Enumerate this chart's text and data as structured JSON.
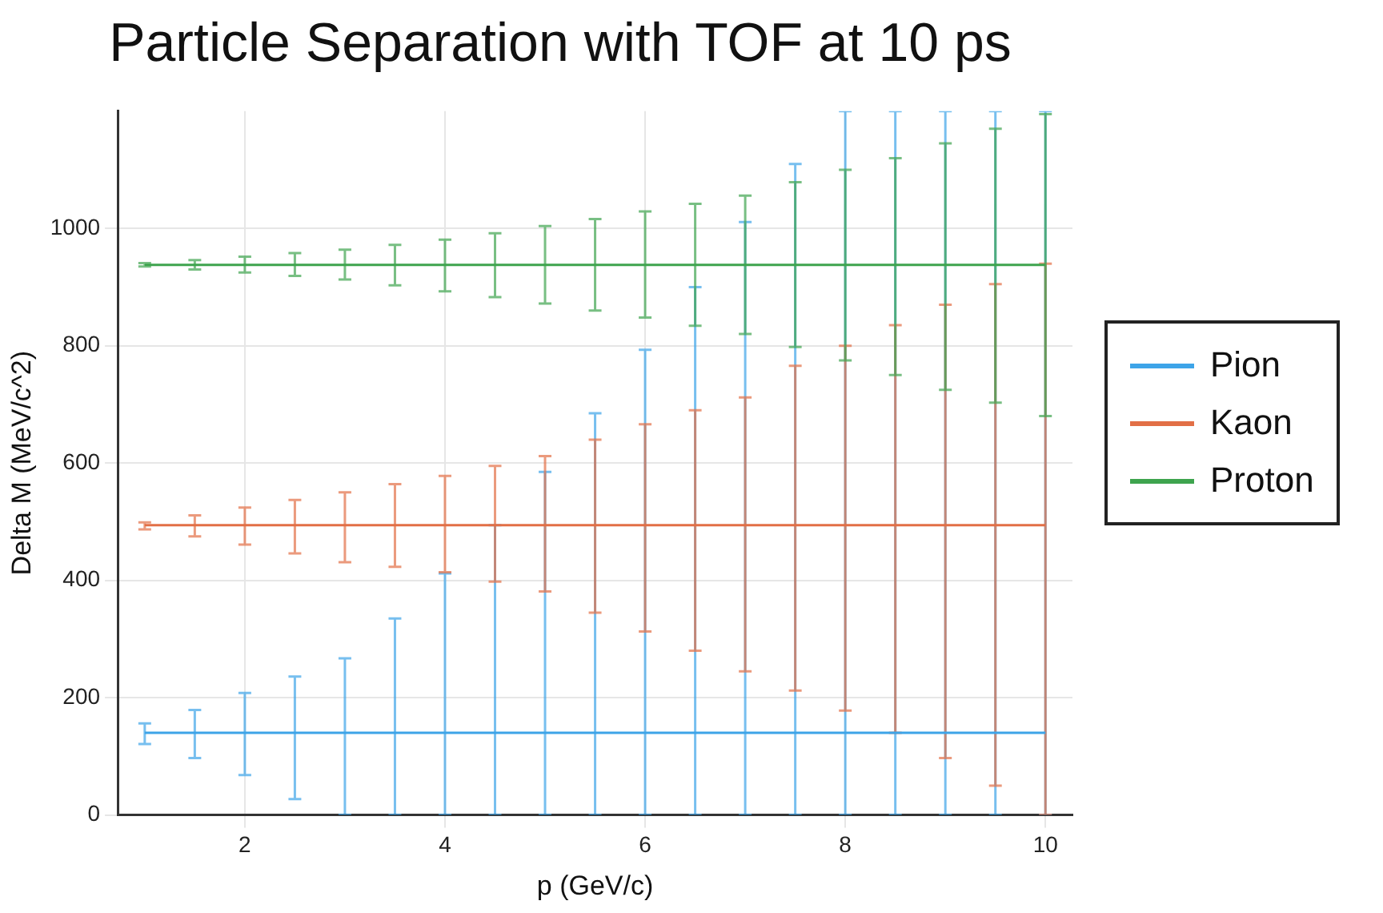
{
  "chart_data": {
    "type": "line",
    "title": "Particle Separation with TOF at 10 ps",
    "xlabel": "p (GeV/c)",
    "ylabel": "Delta M (MeV/c^2)",
    "x": [
      1,
      1.5,
      2,
      2.5,
      3,
      3.5,
      4,
      4.5,
      5,
      5.5,
      6,
      6.5,
      7,
      7.5,
      8,
      8.5,
      9,
      9.5,
      10
    ],
    "series": [
      {
        "name": "Pion",
        "color": "#3da4e8",
        "values": [
          140,
          140,
          140,
          140,
          140,
          140,
          140,
          140,
          140,
          140,
          140,
          140,
          140,
          140,
          140,
          140,
          140,
          140,
          140
        ],
        "errors": [
          [
            121,
            156
          ],
          [
            97,
            179
          ],
          [
            68,
            208
          ],
          [
            27,
            236
          ],
          [
            0,
            267
          ],
          [
            0,
            335
          ],
          [
            0,
            412
          ],
          [
            0,
            494
          ],
          [
            0,
            585
          ],
          [
            0,
            685
          ],
          [
            0,
            793
          ],
          [
            0,
            900
          ],
          [
            0,
            1011
          ],
          [
            0,
            1110
          ],
          [
            0,
            1200
          ],
          [
            0,
            1200
          ],
          [
            0,
            1200
          ],
          [
            0,
            1200
          ],
          [
            0,
            1200
          ]
        ]
      },
      {
        "name": "Kaon",
        "color": "#e26f46",
        "values": [
          494,
          494,
          494,
          494,
          494,
          494,
          494,
          494,
          494,
          494,
          494,
          494,
          494,
          494,
          494,
          494,
          494,
          494,
          494
        ],
        "errors": [
          [
            487,
            499
          ],
          [
            475,
            511
          ],
          [
            461,
            524
          ],
          [
            446,
            537
          ],
          [
            431,
            550
          ],
          [
            423,
            564
          ],
          [
            414,
            578
          ],
          [
            398,
            595
          ],
          [
            381,
            612
          ],
          [
            345,
            640
          ],
          [
            313,
            666
          ],
          [
            280,
            690
          ],
          [
            245,
            712
          ],
          [
            212,
            766
          ],
          [
            178,
            800
          ],
          [
            140,
            835
          ],
          [
            97,
            870
          ],
          [
            50,
            905
          ],
          [
            0,
            940
          ]
        ]
      },
      {
        "name": "Proton",
        "color": "#3ea44e",
        "values": [
          938,
          938,
          938,
          938,
          938,
          938,
          938,
          938,
          938,
          938,
          938,
          938,
          938,
          938,
          938,
          938,
          938,
          938,
          938
        ],
        "errors": [
          [
            935,
            941
          ],
          [
            930,
            946
          ],
          [
            925,
            952
          ],
          [
            919,
            958
          ],
          [
            913,
            964
          ],
          [
            903,
            972
          ],
          [
            893,
            981
          ],
          [
            883,
            992
          ],
          [
            872,
            1004
          ],
          [
            860,
            1016
          ],
          [
            848,
            1029
          ],
          [
            834,
            1042
          ],
          [
            820,
            1056
          ],
          [
            798,
            1079
          ],
          [
            775,
            1100
          ],
          [
            750,
            1120
          ],
          [
            725,
            1145
          ],
          [
            703,
            1170
          ],
          [
            680,
            1195
          ]
        ]
      }
    ],
    "xlim": [
      0.73,
      10.27
    ],
    "xticks": [
      2,
      4,
      6,
      8,
      10
    ],
    "ylim": [
      0,
      1200
    ],
    "yticks": [
      0,
      200,
      400,
      600,
      800,
      1000
    ],
    "grid": true,
    "legend": "right",
    "marker": "none",
    "line_style": "solid"
  }
}
